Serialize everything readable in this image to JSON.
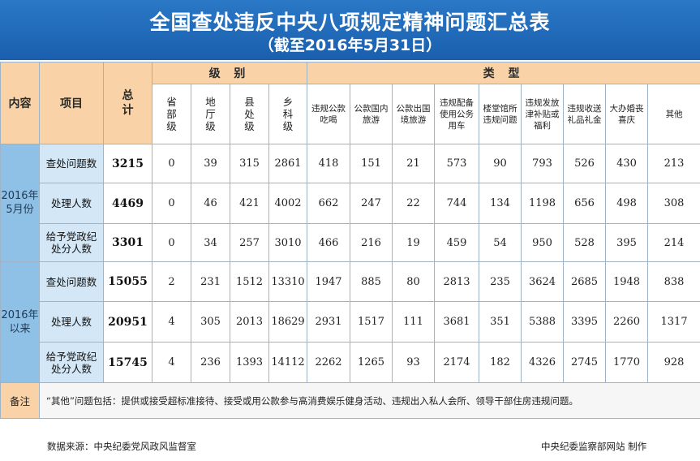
{
  "header": {
    "title": "全国查处违反中央八项规定精神问题汇总表",
    "subtitle": "（截至2016年5月31日）"
  },
  "table": {
    "col_content": "内容",
    "col_item": "项目",
    "col_total": "总计",
    "group_level": "级 别",
    "group_type": "类 型",
    "levels": [
      "省部级",
      "地厅级",
      "县处级",
      "乡科级"
    ],
    "types": [
      "违规公款吃喝",
      "公款国内旅游",
      "公款出国境旅游",
      "违规配备使用公务用车",
      "楼堂馆所违规问题",
      "违规发放津补贴或福利",
      "违规收送礼品礼金",
      "大办婚丧喜庆",
      "其他"
    ],
    "sections": [
      {
        "label": "2016年5月份",
        "rows": [
          {
            "item": "查处问题数",
            "total": "3215",
            "values": [
              "0",
              "39",
              "315",
              "2861",
              "418",
              "151",
              "21",
              "573",
              "90",
              "793",
              "526",
              "430",
              "213"
            ]
          },
          {
            "item": "处理人数",
            "total": "4469",
            "values": [
              "0",
              "46",
              "421",
              "4002",
              "662",
              "247",
              "22",
              "744",
              "134",
              "1198",
              "656",
              "498",
              "308"
            ]
          },
          {
            "item": "给予党政纪处分人数",
            "total": "3301",
            "values": [
              "0",
              "34",
              "257",
              "3010",
              "466",
              "216",
              "19",
              "459",
              "54",
              "950",
              "528",
              "395",
              "214"
            ]
          }
        ]
      },
      {
        "label": "2016年以来",
        "rows": [
          {
            "item": "查处问题数",
            "total": "15055",
            "values": [
              "2",
              "231",
              "1512",
              "13310",
              "1947",
              "885",
              "80",
              "2813",
              "235",
              "3624",
              "2685",
              "1948",
              "838"
            ]
          },
          {
            "item": "处理人数",
            "total": "20951",
            "values": [
              "4",
              "305",
              "2013",
              "18629",
              "2931",
              "1517",
              "111",
              "3681",
              "351",
              "5388",
              "3395",
              "2260",
              "1317"
            ]
          },
          {
            "item": "给予党政纪处分人数",
            "total": "15745",
            "values": [
              "4",
              "236",
              "1393",
              "14112",
              "2262",
              "1265",
              "93",
              "2174",
              "182",
              "4326",
              "2745",
              "1770",
              "928"
            ]
          }
        ]
      }
    ],
    "note_label": "备注",
    "note_text": "“其他”问题包括：提供或接受超标准接待、接受或用公款参与高消费娱乐健身活动、违规出入私人会所、领导干部住房违规问题。"
  },
  "footer": {
    "source": "数据来源：中央纪委党风政风监督室",
    "credit": "中央纪委监察部网站   制作"
  }
}
